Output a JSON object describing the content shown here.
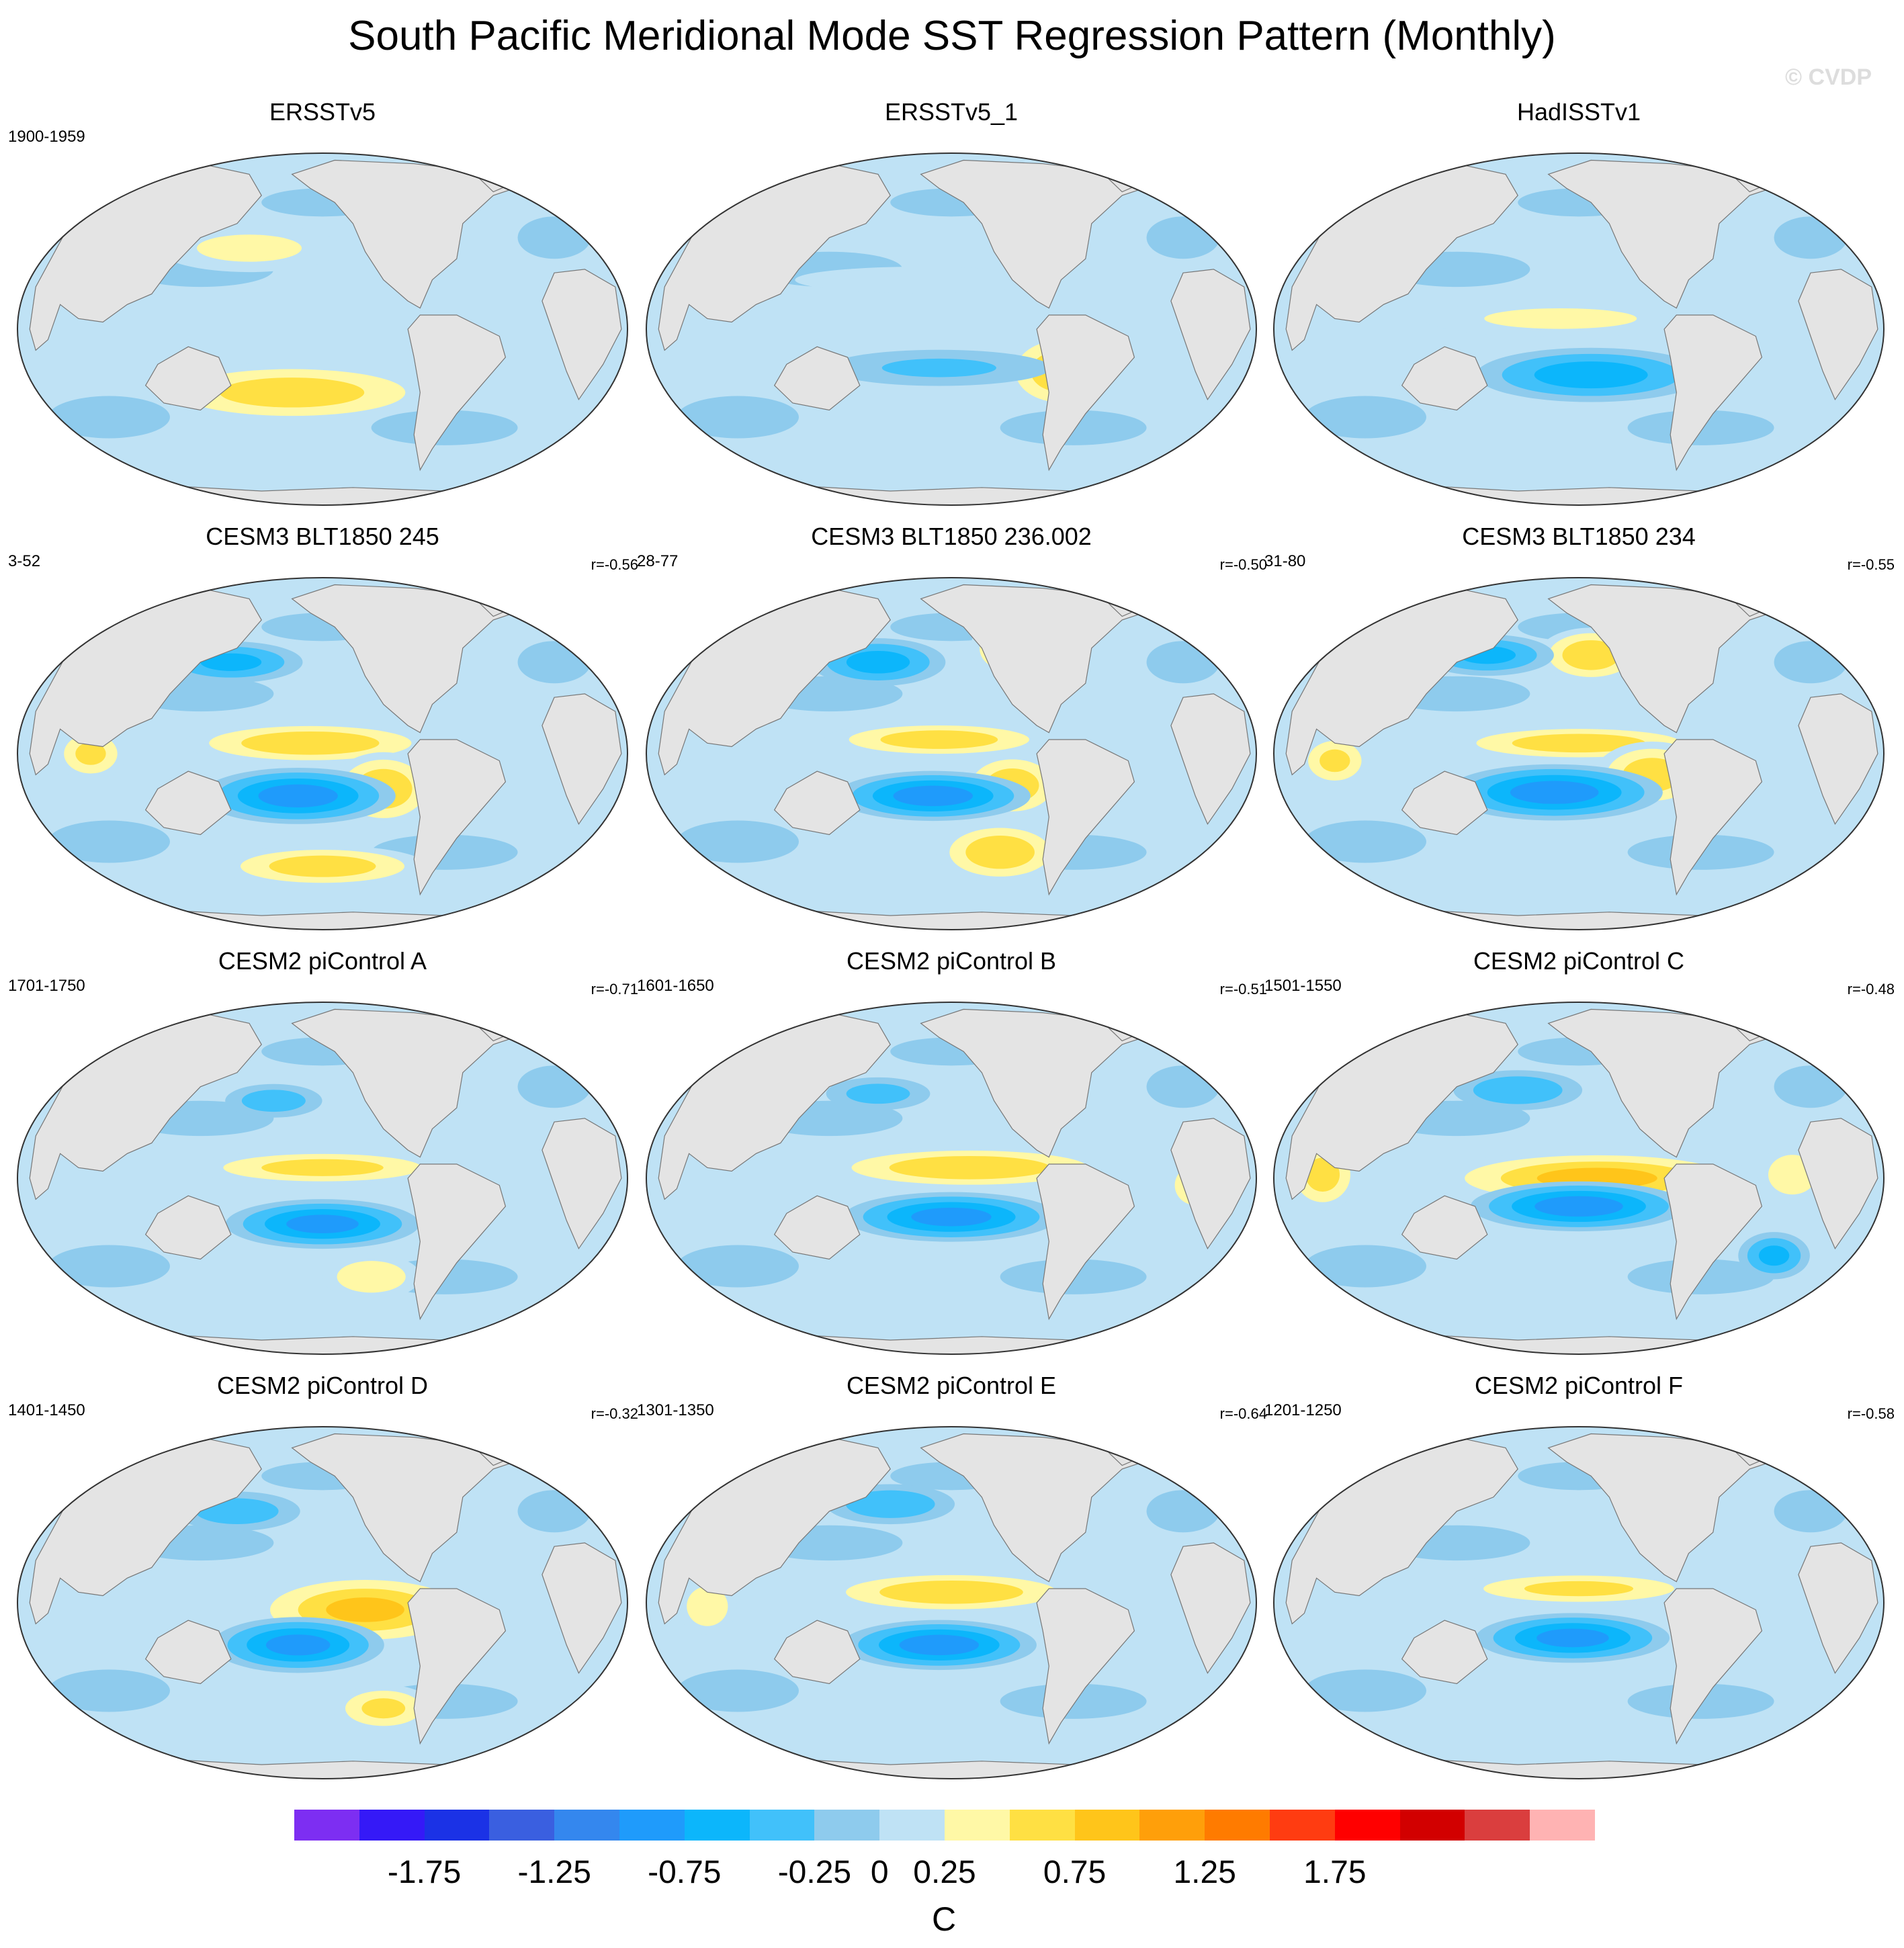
{
  "header": {
    "title": "South Pacific Meridional Mode SST Regression Pattern (Monthly)",
    "watermark": "© CVDP"
  },
  "chart_data": {
    "type": "map",
    "projection": "Robinson (Pacific-centered)",
    "variable": "SST regression on South Pacific Meridional Mode index",
    "units": "C",
    "panels": [
      {
        "title": "ERSSTv5",
        "years": "1900-1959",
        "r": "",
        "cold": [],
        "warm": [
          [
            0.45,
            0.68,
            0.28,
            0.1,
            0.78
          ],
          [
            0.38,
            0.27,
            0.2,
            0.09,
            0.46
          ]
        ]
      },
      {
        "title": "ERSSTv5_1",
        "years": "",
        "r": "",
        "cold": [
          [
            0.48,
            0.61,
            0.25,
            0.07,
            0.42
          ]
        ],
        "warm": [
          [
            0.68,
            0.62,
            0.11,
            0.13,
            0.82
          ],
          [
            0.45,
            0.36,
            0.33,
            0.06,
            0.3
          ]
        ]
      },
      {
        "title": "HadISSTv1",
        "years": "",
        "r": "",
        "cold": [
          [
            0.52,
            0.63,
            0.22,
            0.09,
            0.78
          ]
        ],
        "warm": [
          [
            0.47,
            0.47,
            0.3,
            0.07,
            0.45
          ]
        ]
      },
      {
        "title": "CESM3 BLT1850 245",
        "years": "3-52",
        "r": "r=-0.56",
        "cold": [
          [
            0.46,
            0.62,
            0.18,
            0.09,
            1
          ],
          [
            0.35,
            0.24,
            0.14,
            0.07,
            0.7
          ]
        ],
        "warm": [
          [
            0.48,
            0.47,
            0.24,
            0.07,
            0.85
          ],
          [
            0.6,
            0.6,
            0.1,
            0.12,
            0.85
          ],
          [
            0.12,
            0.5,
            0.07,
            0.09,
            0.7
          ],
          [
            0.5,
            0.82,
            0.2,
            0.07,
            0.8
          ]
        ]
      },
      {
        "title": "CESM3 BLT1850 236.002",
        "years": "28-77",
        "r": "r=-0.50",
        "cold": [
          [
            0.47,
            0.62,
            0.18,
            0.08,
            1
          ],
          [
            0.38,
            0.24,
            0.13,
            0.08,
            0.75
          ]
        ],
        "warm": [
          [
            0.48,
            0.46,
            0.22,
            0.06,
            0.8
          ],
          [
            0.6,
            0.59,
            0.1,
            0.11,
            0.8
          ],
          [
            0.59,
            0.2,
            0.07,
            0.1,
            0.7
          ],
          [
            0.58,
            0.78,
            0.12,
            0.1,
            0.85
          ]
        ]
      },
      {
        "title": "CESM3 BLT1850 234",
        "years": "31-80",
        "r": "r=-0.55",
        "cold": [
          [
            0.46,
            0.61,
            0.2,
            0.09,
            1
          ],
          [
            0.35,
            0.22,
            0.13,
            0.07,
            0.7
          ]
        ],
        "warm": [
          [
            0.5,
            0.47,
            0.25,
            0.06,
            0.8
          ],
          [
            0.62,
            0.56,
            0.11,
            0.11,
            0.8
          ],
          [
            0.52,
            0.22,
            0.1,
            0.09,
            0.85
          ],
          [
            0.1,
            0.52,
            0.07,
            0.09,
            0.7
          ]
        ]
      },
      {
        "title": "CESM2 piControl A",
        "years": "1701-1750",
        "r": "r=-0.71",
        "cold": [
          [
            0.5,
            0.63,
            0.18,
            0.08,
            0.95
          ],
          [
            0.42,
            0.28,
            0.1,
            0.06,
            0.55
          ]
        ],
        "warm": [
          [
            0.5,
            0.47,
            0.25,
            0.06,
            0.75
          ],
          [
            0.58,
            0.78,
            0.1,
            0.08,
            0.6
          ]
        ]
      },
      {
        "title": "CESM2 piControl B",
        "years": "1601-1650",
        "r": "r=-0.51",
        "cold": [
          [
            0.5,
            0.61,
            0.2,
            0.08,
            0.95
          ],
          [
            0.38,
            0.26,
            0.11,
            0.06,
            0.5
          ]
        ],
        "warm": [
          [
            0.53,
            0.47,
            0.28,
            0.07,
            0.85
          ],
          [
            0.9,
            0.52,
            0.06,
            0.1,
            0.6
          ]
        ]
      },
      {
        "title": "CESM2 piControl C",
        "years": "1501-1550",
        "r": "r=-0.48",
        "cold": [
          [
            0.5,
            0.58,
            0.2,
            0.08,
            1
          ],
          [
            0.82,
            0.72,
            0.07,
            0.08,
            0.7
          ],
          [
            0.4,
            0.25,
            0.13,
            0.07,
            0.6
          ]
        ],
        "warm": [
          [
            0.53,
            0.5,
            0.3,
            0.09,
            0.95
          ],
          [
            0.08,
            0.49,
            0.07,
            0.12,
            0.75
          ],
          [
            0.85,
            0.49,
            0.07,
            0.1,
            0.6
          ]
        ]
      },
      {
        "title": "CESM2 piControl D",
        "years": "1401-1450",
        "r": "r=-0.32",
        "cold": [
          [
            0.46,
            0.62,
            0.16,
            0.09,
            0.95
          ],
          [
            0.36,
            0.24,
            0.13,
            0.07,
            0.55
          ]
        ],
        "warm": [
          [
            0.57,
            0.52,
            0.22,
            0.12,
            0.9
          ],
          [
            0.6,
            0.8,
            0.1,
            0.08,
            0.7
          ]
        ]
      },
      {
        "title": "CESM2 piControl E",
        "years": "1301-1350",
        "r": "r=-0.64",
        "cold": [
          [
            0.48,
            0.62,
            0.18,
            0.08,
            1
          ],
          [
            0.4,
            0.22,
            0.13,
            0.07,
            0.6
          ]
        ],
        "warm": [
          [
            0.5,
            0.47,
            0.25,
            0.07,
            0.85
          ],
          [
            0.1,
            0.51,
            0.06,
            0.1,
            0.6
          ]
        ]
      },
      {
        "title": "CESM2 piControl F",
        "years": "1201-1250",
        "r": "r=-0.58",
        "cold": [
          [
            0.49,
            0.6,
            0.18,
            0.08,
            0.95
          ]
        ],
        "warm": [
          [
            0.5,
            0.46,
            0.25,
            0.06,
            0.7
          ]
        ]
      }
    ],
    "colorbar": {
      "levels": [
        -2,
        -1.75,
        -1.5,
        -1.25,
        -1,
        -0.75,
        -0.5,
        -0.25,
        0,
        0.25,
        0.5,
        0.75,
        1,
        1.25,
        1.5,
        1.75,
        2
      ],
      "colors": [
        "#7d2ef2",
        "#3519f7",
        "#1b32e6",
        "#3a5fe0",
        "#3487ee",
        "#1f9bfb",
        "#0cb6fb",
        "#41c1fa",
        "#8ecbed",
        "#bfe2f5",
        "#fff8a6",
        "#ffe043",
        "#ffc51a",
        "#ff9f0a",
        "#ff7b00",
        "#ff3c11",
        "#ff0000",
        "#d20000",
        "#da3e3e",
        "#ffb3b3"
      ],
      "tick_labels": [
        "-1.75",
        "-1.25",
        "-0.75",
        "-0.25",
        "0",
        "0.25",
        "0.75",
        "1.25",
        "1.75"
      ],
      "tick_values": [
        -1.75,
        -1.25,
        -0.75,
        -0.25,
        0,
        0.25,
        0.75,
        1.25,
        1.75
      ],
      "label": "C"
    }
  }
}
